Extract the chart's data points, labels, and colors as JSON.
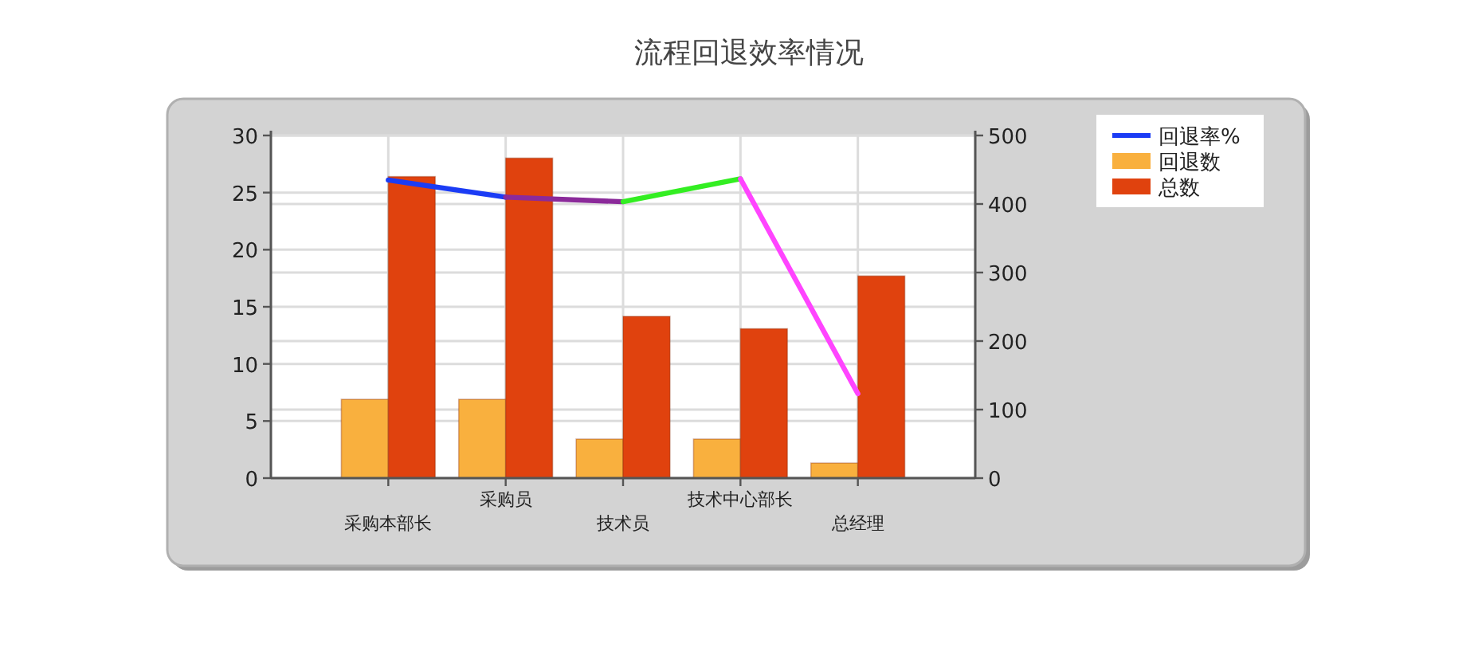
{
  "chart_data": {
    "type": "bar",
    "title": "流程回退效率情况",
    "categories": [
      "采购本部长",
      "采购员",
      "技术员",
      "技术中心部长",
      "总经理"
    ],
    "series": [
      {
        "name": "回退率%",
        "type": "line",
        "color": "#1b3cf5",
        "values": [
          26.1,
          24.6,
          null,
          null,
          null
        ]
      },
      {
        "type": "line",
        "color": "#8b2a9a",
        "values": [
          null,
          24.6,
          24.2,
          null,
          null
        ]
      },
      {
        "type": "line",
        "color": "#33ee22",
        "values": [
          null,
          null,
          24.2,
          26.2,
          null
        ]
      },
      {
        "type": "line",
        "color": "#ff44ff",
        "values": [
          null,
          null,
          null,
          26.2,
          7.4
        ]
      },
      {
        "name": "回退数",
        "type": "bar",
        "axis": "y2",
        "color": "#f9b03e",
        "values": [
          115,
          115,
          57,
          57,
          22
        ]
      },
      {
        "name": "总数",
        "type": "bar",
        "axis": "y2",
        "color": "#e0420e",
        "values": [
          440,
          467,
          236,
          218,
          295
        ]
      }
    ],
    "ylim": [
      0,
      30
    ],
    "yticks": [
      0,
      5,
      10,
      15,
      20,
      25,
      30
    ],
    "y2lim": [
      0,
      500
    ],
    "y2ticks": [
      0,
      100,
      200,
      300,
      400,
      500
    ],
    "grid": true,
    "legend": "top right",
    "line_style": "solid"
  }
}
